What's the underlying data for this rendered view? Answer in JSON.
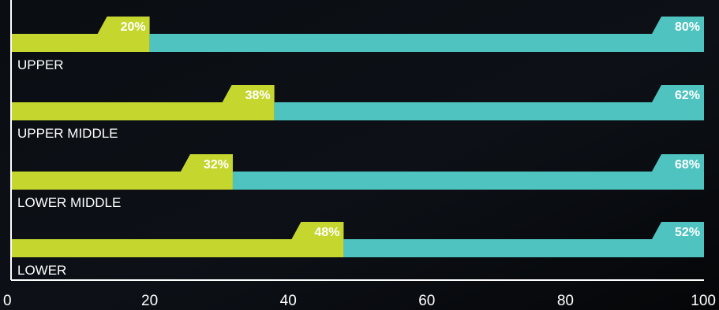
{
  "chart_data": {
    "type": "bar",
    "stacked": true,
    "orientation": "horizontal",
    "categories": [
      "UPPER",
      "UPPER MIDDLE",
      "LOWER MIDDLE",
      "LOWER"
    ],
    "series": [
      {
        "values": [
          20,
          38,
          32,
          48
        ],
        "labels": [
          "20%",
          "38%",
          "32%",
          "48%"
        ],
        "color": "#c5d62f"
      },
      {
        "values": [
          80,
          62,
          68,
          52
        ],
        "labels": [
          "80%",
          "62%",
          "68%",
          "52%"
        ],
        "color": "#4fc3bf"
      }
    ],
    "xlim": [
      0,
      100
    ],
    "xticks": [
      "0",
      "20",
      "40",
      "60",
      "80",
      "100"
    ],
    "grid": false,
    "legend": "none"
  },
  "colors": {
    "background": "#050608",
    "axis": "#ffffff",
    "text": "#ffffff"
  }
}
